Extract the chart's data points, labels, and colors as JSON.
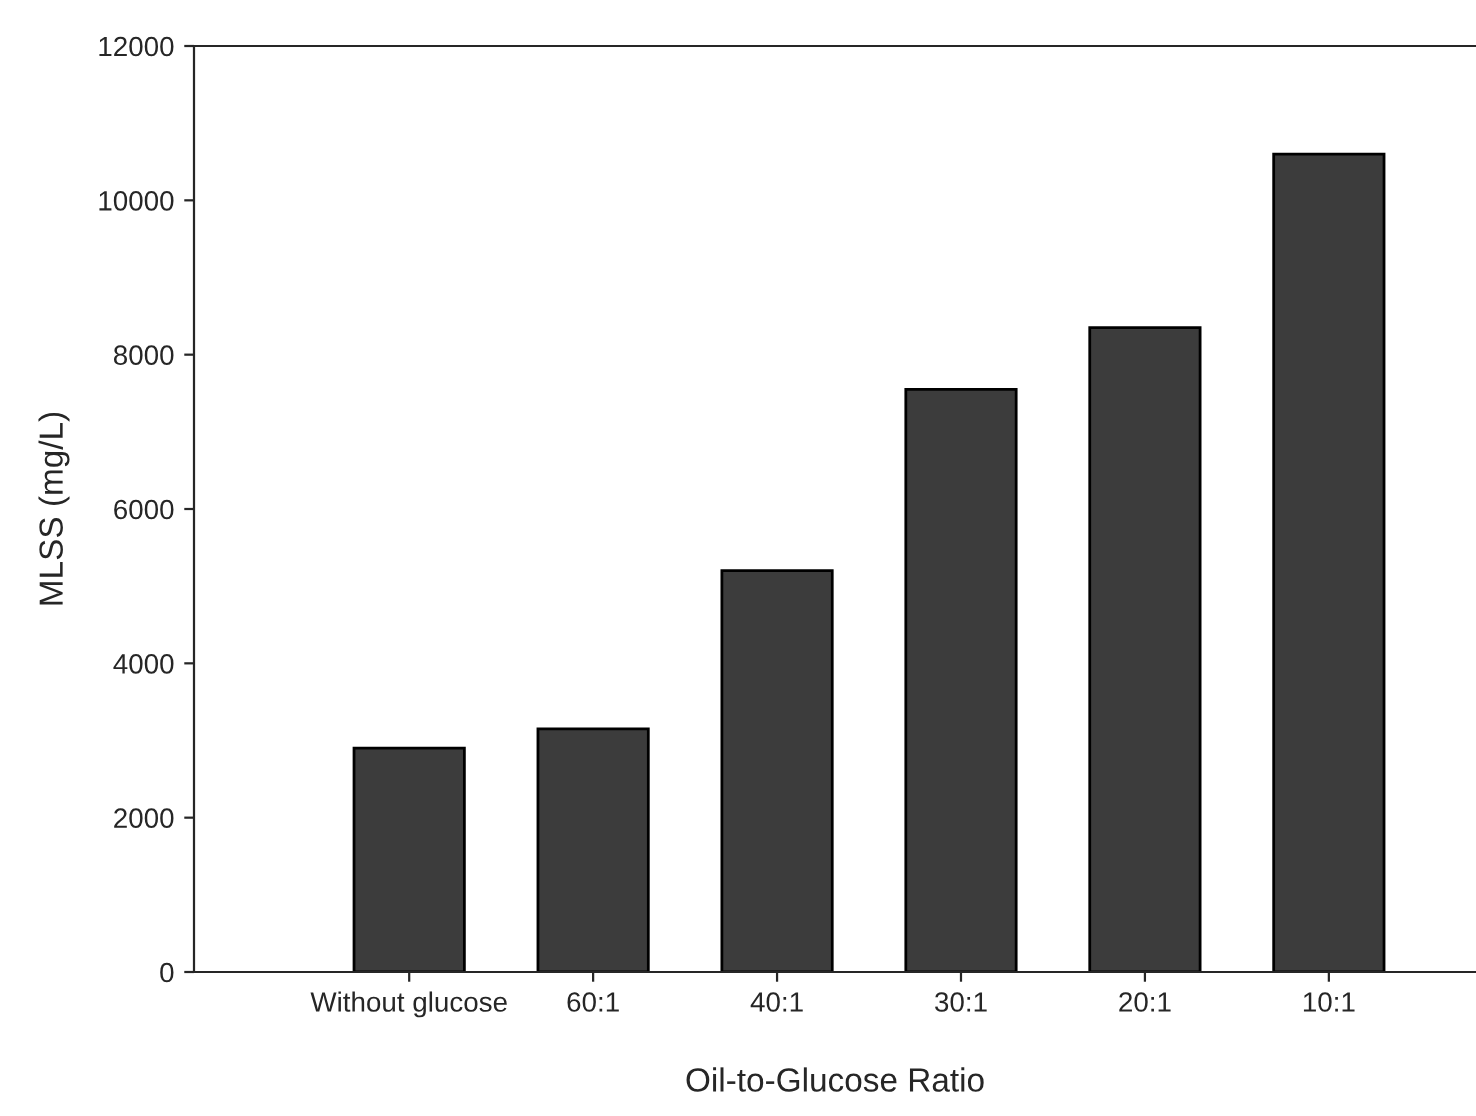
{
  "chart_data": {
    "type": "bar",
    "xlabel": "Oil-to-Glucose Ratio",
    "ylabel": "MLSS (mg/L)",
    "categories": [
      "Without glucose",
      "60:1",
      "40:1",
      "30:1",
      "20:1",
      "10:1"
    ],
    "values": [
      2900,
      3150,
      5200,
      7550,
      8350,
      10600
    ],
    "color": "#3c3c3c",
    "ylim": [
      0,
      12000
    ],
    "yticks": [
      0,
      2000,
      4000,
      6000,
      8000,
      10000,
      12000
    ],
    "grid": false,
    "legend": false
  }
}
